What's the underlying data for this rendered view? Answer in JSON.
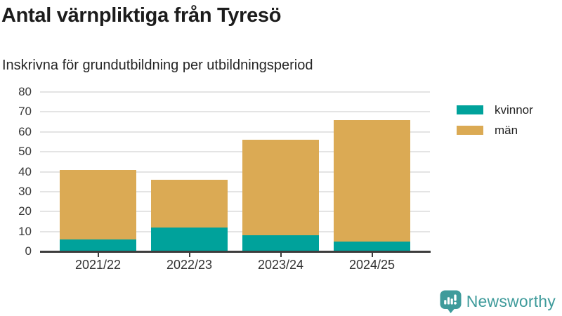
{
  "header": {
    "title": "Antal värnpliktiga från Tyresö",
    "subtitle": "Inskrivna för grundutbildning per utbildningsperiod"
  },
  "chart_data": {
    "type": "bar",
    "stacked": true,
    "title": "Antal värnpliktiga från Tyresö",
    "subtitle": "Inskrivna för grundutbildning per utbildningsperiod",
    "categories": [
      "2021/22",
      "2022/23",
      "2023/24",
      "2024/25"
    ],
    "series": [
      {
        "name": "kvinnor",
        "color": "#00a29b",
        "values": [
          6,
          12,
          8,
          5
        ]
      },
      {
        "name": "män",
        "color": "#dbaa54",
        "values": [
          35,
          24,
          48,
          61
        ]
      }
    ],
    "stack_totals": [
      41,
      36,
      56,
      66
    ],
    "xlabel": "",
    "ylabel": "",
    "ylim": [
      0,
      80
    ],
    "y_ticks": [
      0,
      10,
      20,
      30,
      40,
      50,
      60,
      70,
      80
    ],
    "grid": "horizontal",
    "legend_position": "right-top"
  },
  "branding": {
    "name": "Newsworthy"
  },
  "colors": {
    "kvinnor": "#00a29b",
    "man": "#dbaa54",
    "gridline": "#e4e4e4",
    "axis_line": "#3d3d3d",
    "axis_text": "#3a3a3a",
    "title_text": "#1c1c1c",
    "logo_teal": "#3f9b9b",
    "background": "#ffffff"
  }
}
